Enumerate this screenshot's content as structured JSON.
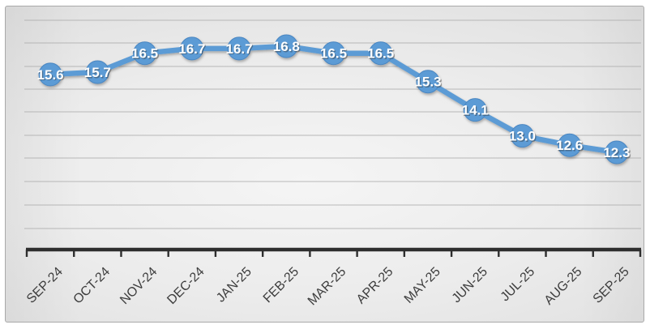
{
  "window": {
    "background": "#ffffff"
  },
  "chart_data": {
    "type": "line",
    "title": "",
    "xlabel": "",
    "ylabel": "",
    "categories": [
      "SEP-24",
      "OCT-24",
      "NOV-24",
      "DEC-24",
      "JAN-25",
      "FEB-25",
      "MAR-25",
      "APR-25",
      "MAY-25",
      "JUN-25",
      "JUL-25",
      "AUG-25",
      "SEP-25"
    ],
    "values": [
      15.6,
      15.7,
      16.5,
      16.7,
      16.7,
      16.8,
      16.5,
      16.5,
      15.3,
      14.1,
      13.0,
      12.6,
      12.3
    ],
    "data_labels": [
      "15.6",
      "15.7",
      "16.5",
      "16.7",
      "16.7",
      "16.8",
      "16.5",
      "16.5",
      "15.3",
      "14.1",
      "13.0",
      "12.6",
      "12.3"
    ],
    "ylim": [
      8,
      18
    ],
    "grid": true,
    "legend": false,
    "data_label_position": "center",
    "x_label_rotation": -45
  },
  "colors": {
    "series": "#5b9bd5",
    "marker_edge": "#4a86c2",
    "data_label": "#ffffff",
    "data_label_shadow": "rgba(40,40,40,0.38)",
    "axis": "#2e2e2e",
    "gridline": "#aeaeae",
    "tick_label": "#3d3d3d",
    "frame_border": "#a9a9a9"
  }
}
